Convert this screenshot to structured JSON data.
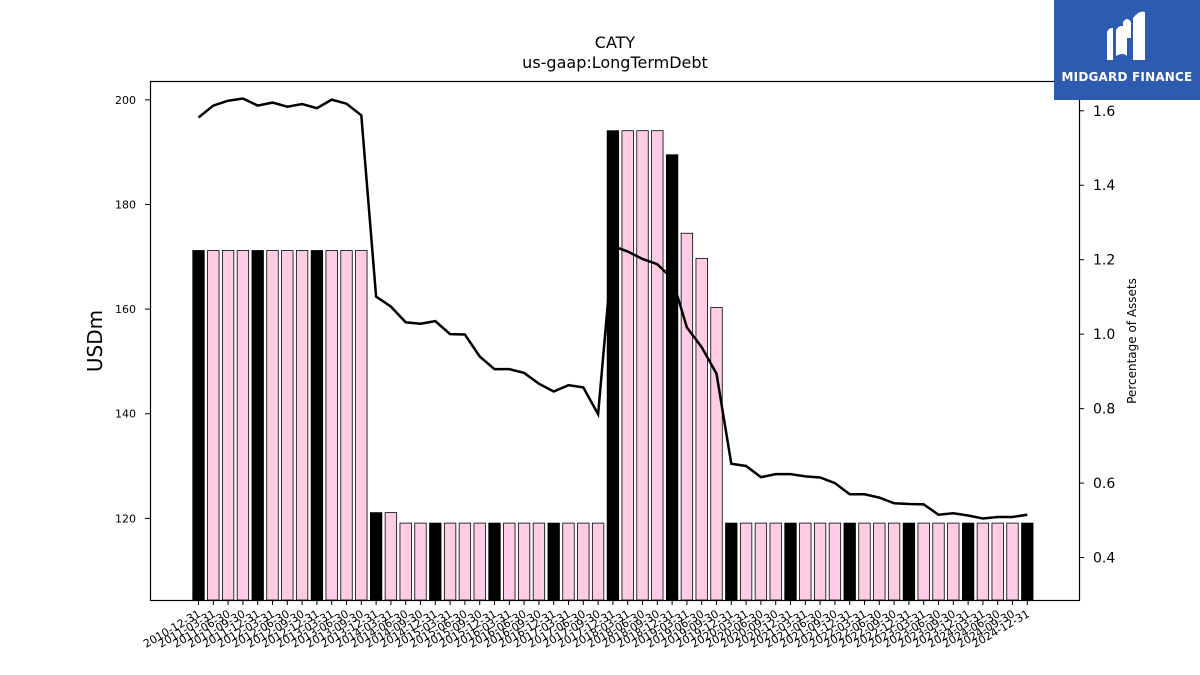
{
  "chart_data": {
    "type": "bar",
    "title": "CATY",
    "subtitle": "us-gaap:LongTermDebt",
    "ylabel": "USDm",
    "ylabel_right": "Percentage of Assets",
    "ylim": [
      104.4,
      203.6
    ],
    "ylim_right": [
      0.286,
      1.68
    ],
    "yticks": [
      120,
      140,
      160,
      180,
      200
    ],
    "yticks_right": [
      0.4,
      0.6,
      0.8,
      1.0,
      1.2,
      1.4,
      1.6
    ],
    "yticks_right_labels": [
      "0.4",
      "0.6",
      "0.8",
      "1.0",
      "1.2",
      "1.4",
      "1.6"
    ],
    "categories": [
      "2010-12-31",
      "2011-03-31",
      "2011-06-30",
      "2011-09-30",
      "2011-12-31",
      "2012-03-31",
      "2012-06-30",
      "2012-09-30",
      "2012-12-31",
      "2013-03-31",
      "2013-06-30",
      "2013-09-30",
      "2013-12-31",
      "2014-03-31",
      "2014-06-30",
      "2014-09-30",
      "2014-12-31",
      "2015-03-31",
      "2015-06-30",
      "2015-09-30",
      "2015-12-31",
      "2016-03-31",
      "2016-06-30",
      "2016-09-30",
      "2016-12-31",
      "2017-03-31",
      "2017-06-30",
      "2017-09-30",
      "2017-12-31",
      "2018-03-31",
      "2018-06-30",
      "2018-09-30",
      "2018-12-31",
      "2019-03-31",
      "2019-06-30",
      "2019-09-30",
      "2019-12-31",
      "2020-03-31",
      "2020-06-30",
      "2020-09-30",
      "2020-12-31",
      "2021-03-31",
      "2021-06-30",
      "2021-09-30",
      "2021-12-31",
      "2022-03-31",
      "2022-06-30",
      "2022-09-30",
      "2022-12-31",
      "2023-03-31",
      "2023-06-30",
      "2023-09-30",
      "2023-12-31",
      "2024-03-31",
      "2024-06-30",
      "2024-09-30",
      "2024-12-31"
    ],
    "series": [
      {
        "name": "LongTermDebt",
        "axis": "left",
        "values": [
          171.2,
          171.2,
          171.2,
          171.2,
          171.2,
          171.2,
          171.2,
          171.2,
          171.2,
          171.2,
          171.2,
          171.2,
          121.1,
          121.1,
          119.1,
          119.1,
          119.1,
          119.1,
          119.1,
          119.1,
          119.1,
          119.1,
          119.1,
          119.1,
          119.1,
          119.1,
          119.1,
          119.1,
          194.1,
          194.1,
          194.1,
          194.1,
          189.5,
          174.5,
          169.7,
          160.3,
          119.1,
          119.1,
          119.1,
          119.1,
          119.1,
          119.1,
          119.1,
          119.1,
          119.1,
          119.1,
          119.1,
          119.1,
          119.1,
          119.1,
          119.1,
          119.1,
          119.1,
          119.1,
          119.1,
          119.1,
          119.1
        ],
        "highlight": [
          true,
          false,
          false,
          false,
          true,
          false,
          false,
          false,
          true,
          false,
          false,
          false,
          true,
          false,
          false,
          false,
          true,
          false,
          false,
          false,
          true,
          false,
          false,
          false,
          true,
          false,
          false,
          false,
          true,
          false,
          false,
          false,
          true,
          false,
          false,
          false,
          true,
          false,
          false,
          false,
          true,
          false,
          false,
          false,
          true,
          false,
          false,
          false,
          true,
          false,
          false,
          false,
          true,
          false,
          false,
          false,
          true
        ]
      },
      {
        "name": "Percentage of Assets",
        "axis": "right",
        "values": [
          1.582,
          1.614,
          1.627,
          1.633,
          1.614,
          1.622,
          1.611,
          1.618,
          1.607,
          1.63,
          1.619,
          1.588,
          1.101,
          1.074,
          1.032,
          1.028,
          1.035,
          1.0,
          0.999,
          0.94,
          0.906,
          0.906,
          0.896,
          0.867,
          0.846,
          0.863,
          0.857,
          0.785,
          1.237,
          1.222,
          1.202,
          1.188,
          1.15,
          1.018,
          0.965,
          0.894,
          0.652,
          0.646,
          0.616,
          0.624,
          0.624,
          0.618,
          0.615,
          0.6,
          0.57,
          0.57,
          0.561,
          0.546,
          0.544,
          0.543,
          0.515,
          0.519,
          0.513,
          0.505,
          0.509,
          0.509,
          0.515
        ]
      }
    ],
    "colors": {
      "highlight_bar": "#000000",
      "bar": "#ffcce6",
      "bar_edge": "#000000",
      "line": "#000000"
    },
    "grid": false,
    "legend": "none"
  },
  "logo": {
    "text": "MIDGARD FINANCE",
    "background": "#2d5bb0",
    "icon": "midgard-logo-icon"
  }
}
